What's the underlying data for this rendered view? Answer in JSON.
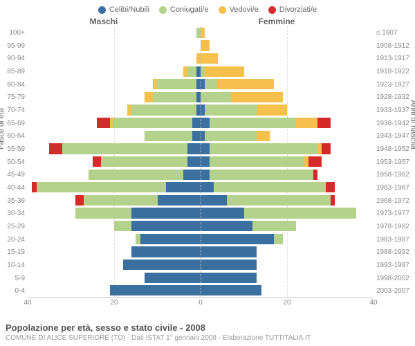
{
  "legend": [
    {
      "label": "Celibi/Nubili",
      "color": "#3b6fa0"
    },
    {
      "label": "Coniugati/e",
      "color": "#b4d28b"
    },
    {
      "label": "Vedovi/e",
      "color": "#f6c04d"
    },
    {
      "label": "Divorziati/e",
      "color": "#d42a2a"
    }
  ],
  "headers": {
    "left": "Maschi",
    "right": "Femmine"
  },
  "y_title_left": "Fasce di età",
  "y_title_right": "Anni di nascita",
  "ages": [
    "100+",
    "95-99",
    "90-94",
    "85-89",
    "80-84",
    "75-79",
    "70-74",
    "65-69",
    "60-64",
    "55-59",
    "50-54",
    "45-49",
    "40-44",
    "35-39",
    "30-34",
    "25-29",
    "20-24",
    "15-19",
    "10-14",
    "5-9",
    "0-4"
  ],
  "years": [
    "≤ 1907",
    "1908-1912",
    "1913-1917",
    "1918-1922",
    "1923-1927",
    "1928-1932",
    "1933-1937",
    "1938-1942",
    "1943-1947",
    "1948-1952",
    "1953-1957",
    "1958-1962",
    "1963-1967",
    "1968-1972",
    "1973-1977",
    "1978-1982",
    "1983-1987",
    "1988-1992",
    "1993-1997",
    "1998-2002",
    "2003-2007"
  ],
  "x_max": 40,
  "x_ticks": [
    40,
    20,
    0,
    20,
    40
  ],
  "colors": {
    "celibi": "#3b6fa0",
    "coniugati": "#b4d28b",
    "vedovi": "#f6c04d",
    "divorziati": "#d42a2a",
    "grid": "#dddddd",
    "axis_text": "#888888",
    "bg": "#ffffff"
  },
  "rows": [
    {
      "m": {
        "c": 0,
        "k": 1,
        "v": 0,
        "d": 0
      },
      "f": {
        "c": 0,
        "k": 0,
        "v": 1,
        "d": 0
      }
    },
    {
      "m": {
        "c": 0,
        "k": 0,
        "v": 0,
        "d": 0
      },
      "f": {
        "c": 0,
        "k": 0,
        "v": 2,
        "d": 0
      }
    },
    {
      "m": {
        "c": 0,
        "k": 0,
        "v": 1,
        "d": 0
      },
      "f": {
        "c": 0,
        "k": 0,
        "v": 4,
        "d": 0
      }
    },
    {
      "m": {
        "c": 1,
        "k": 2,
        "v": 1,
        "d": 0
      },
      "f": {
        "c": 0,
        "k": 1,
        "v": 9,
        "d": 0
      }
    },
    {
      "m": {
        "c": 1,
        "k": 9,
        "v": 1,
        "d": 0
      },
      "f": {
        "c": 1,
        "k": 3,
        "v": 13,
        "d": 0
      }
    },
    {
      "m": {
        "c": 1,
        "k": 10,
        "v": 2,
        "d": 0
      },
      "f": {
        "c": 0,
        "k": 7,
        "v": 12,
        "d": 0
      }
    },
    {
      "m": {
        "c": 1,
        "k": 15,
        "v": 1,
        "d": 0
      },
      "f": {
        "c": 1,
        "k": 12,
        "v": 7,
        "d": 0
      }
    },
    {
      "m": {
        "c": 2,
        "k": 18,
        "v": 1,
        "d": 3
      },
      "f": {
        "c": 2,
        "k": 20,
        "v": 5,
        "d": 3
      }
    },
    {
      "m": {
        "c": 2,
        "k": 11,
        "v": 0,
        "d": 0
      },
      "f": {
        "c": 1,
        "k": 12,
        "v": 3,
        "d": 0
      }
    },
    {
      "m": {
        "c": 3,
        "k": 29,
        "v": 0,
        "d": 3
      },
      "f": {
        "c": 2,
        "k": 25,
        "v": 1,
        "d": 2
      }
    },
    {
      "m": {
        "c": 3,
        "k": 20,
        "v": 0,
        "d": 2
      },
      "f": {
        "c": 2,
        "k": 22,
        "v": 1,
        "d": 3
      }
    },
    {
      "m": {
        "c": 4,
        "k": 22,
        "v": 0,
        "d": 0
      },
      "f": {
        "c": 2,
        "k": 24,
        "v": 0,
        "d": 1
      }
    },
    {
      "m": {
        "c": 8,
        "k": 30,
        "v": 0,
        "d": 1
      },
      "f": {
        "c": 3,
        "k": 26,
        "v": 0,
        "d": 2
      }
    },
    {
      "m": {
        "c": 10,
        "k": 17,
        "v": 0,
        "d": 2
      },
      "f": {
        "c": 6,
        "k": 24,
        "v": 0,
        "d": 1
      }
    },
    {
      "m": {
        "c": 16,
        "k": 13,
        "v": 0,
        "d": 0
      },
      "f": {
        "c": 10,
        "k": 26,
        "v": 0,
        "d": 0
      }
    },
    {
      "m": {
        "c": 16,
        "k": 4,
        "v": 0,
        "d": 0
      },
      "f": {
        "c": 12,
        "k": 10,
        "v": 0,
        "d": 0
      }
    },
    {
      "m": {
        "c": 14,
        "k": 1,
        "v": 0,
        "d": 0
      },
      "f": {
        "c": 17,
        "k": 2,
        "v": 0,
        "d": 0
      }
    },
    {
      "m": {
        "c": 16,
        "k": 0,
        "v": 0,
        "d": 0
      },
      "f": {
        "c": 13,
        "k": 0,
        "v": 0,
        "d": 0
      }
    },
    {
      "m": {
        "c": 18,
        "k": 0,
        "v": 0,
        "d": 0
      },
      "f": {
        "c": 13,
        "k": 0,
        "v": 0,
        "d": 0
      }
    },
    {
      "m": {
        "c": 13,
        "k": 0,
        "v": 0,
        "d": 0
      },
      "f": {
        "c": 13,
        "k": 0,
        "v": 0,
        "d": 0
      }
    },
    {
      "m": {
        "c": 21,
        "k": 0,
        "v": 0,
        "d": 0
      },
      "f": {
        "c": 14,
        "k": 0,
        "v": 0,
        "d": 0
      }
    }
  ],
  "title": "Popolazione per età, sesso e stato civile - 2008",
  "subtitle": "COMUNE DI ALICE SUPERIORE (TO) - Dati ISTAT 1° gennaio 2008 - Elaborazione TUTTITALIA.IT"
}
